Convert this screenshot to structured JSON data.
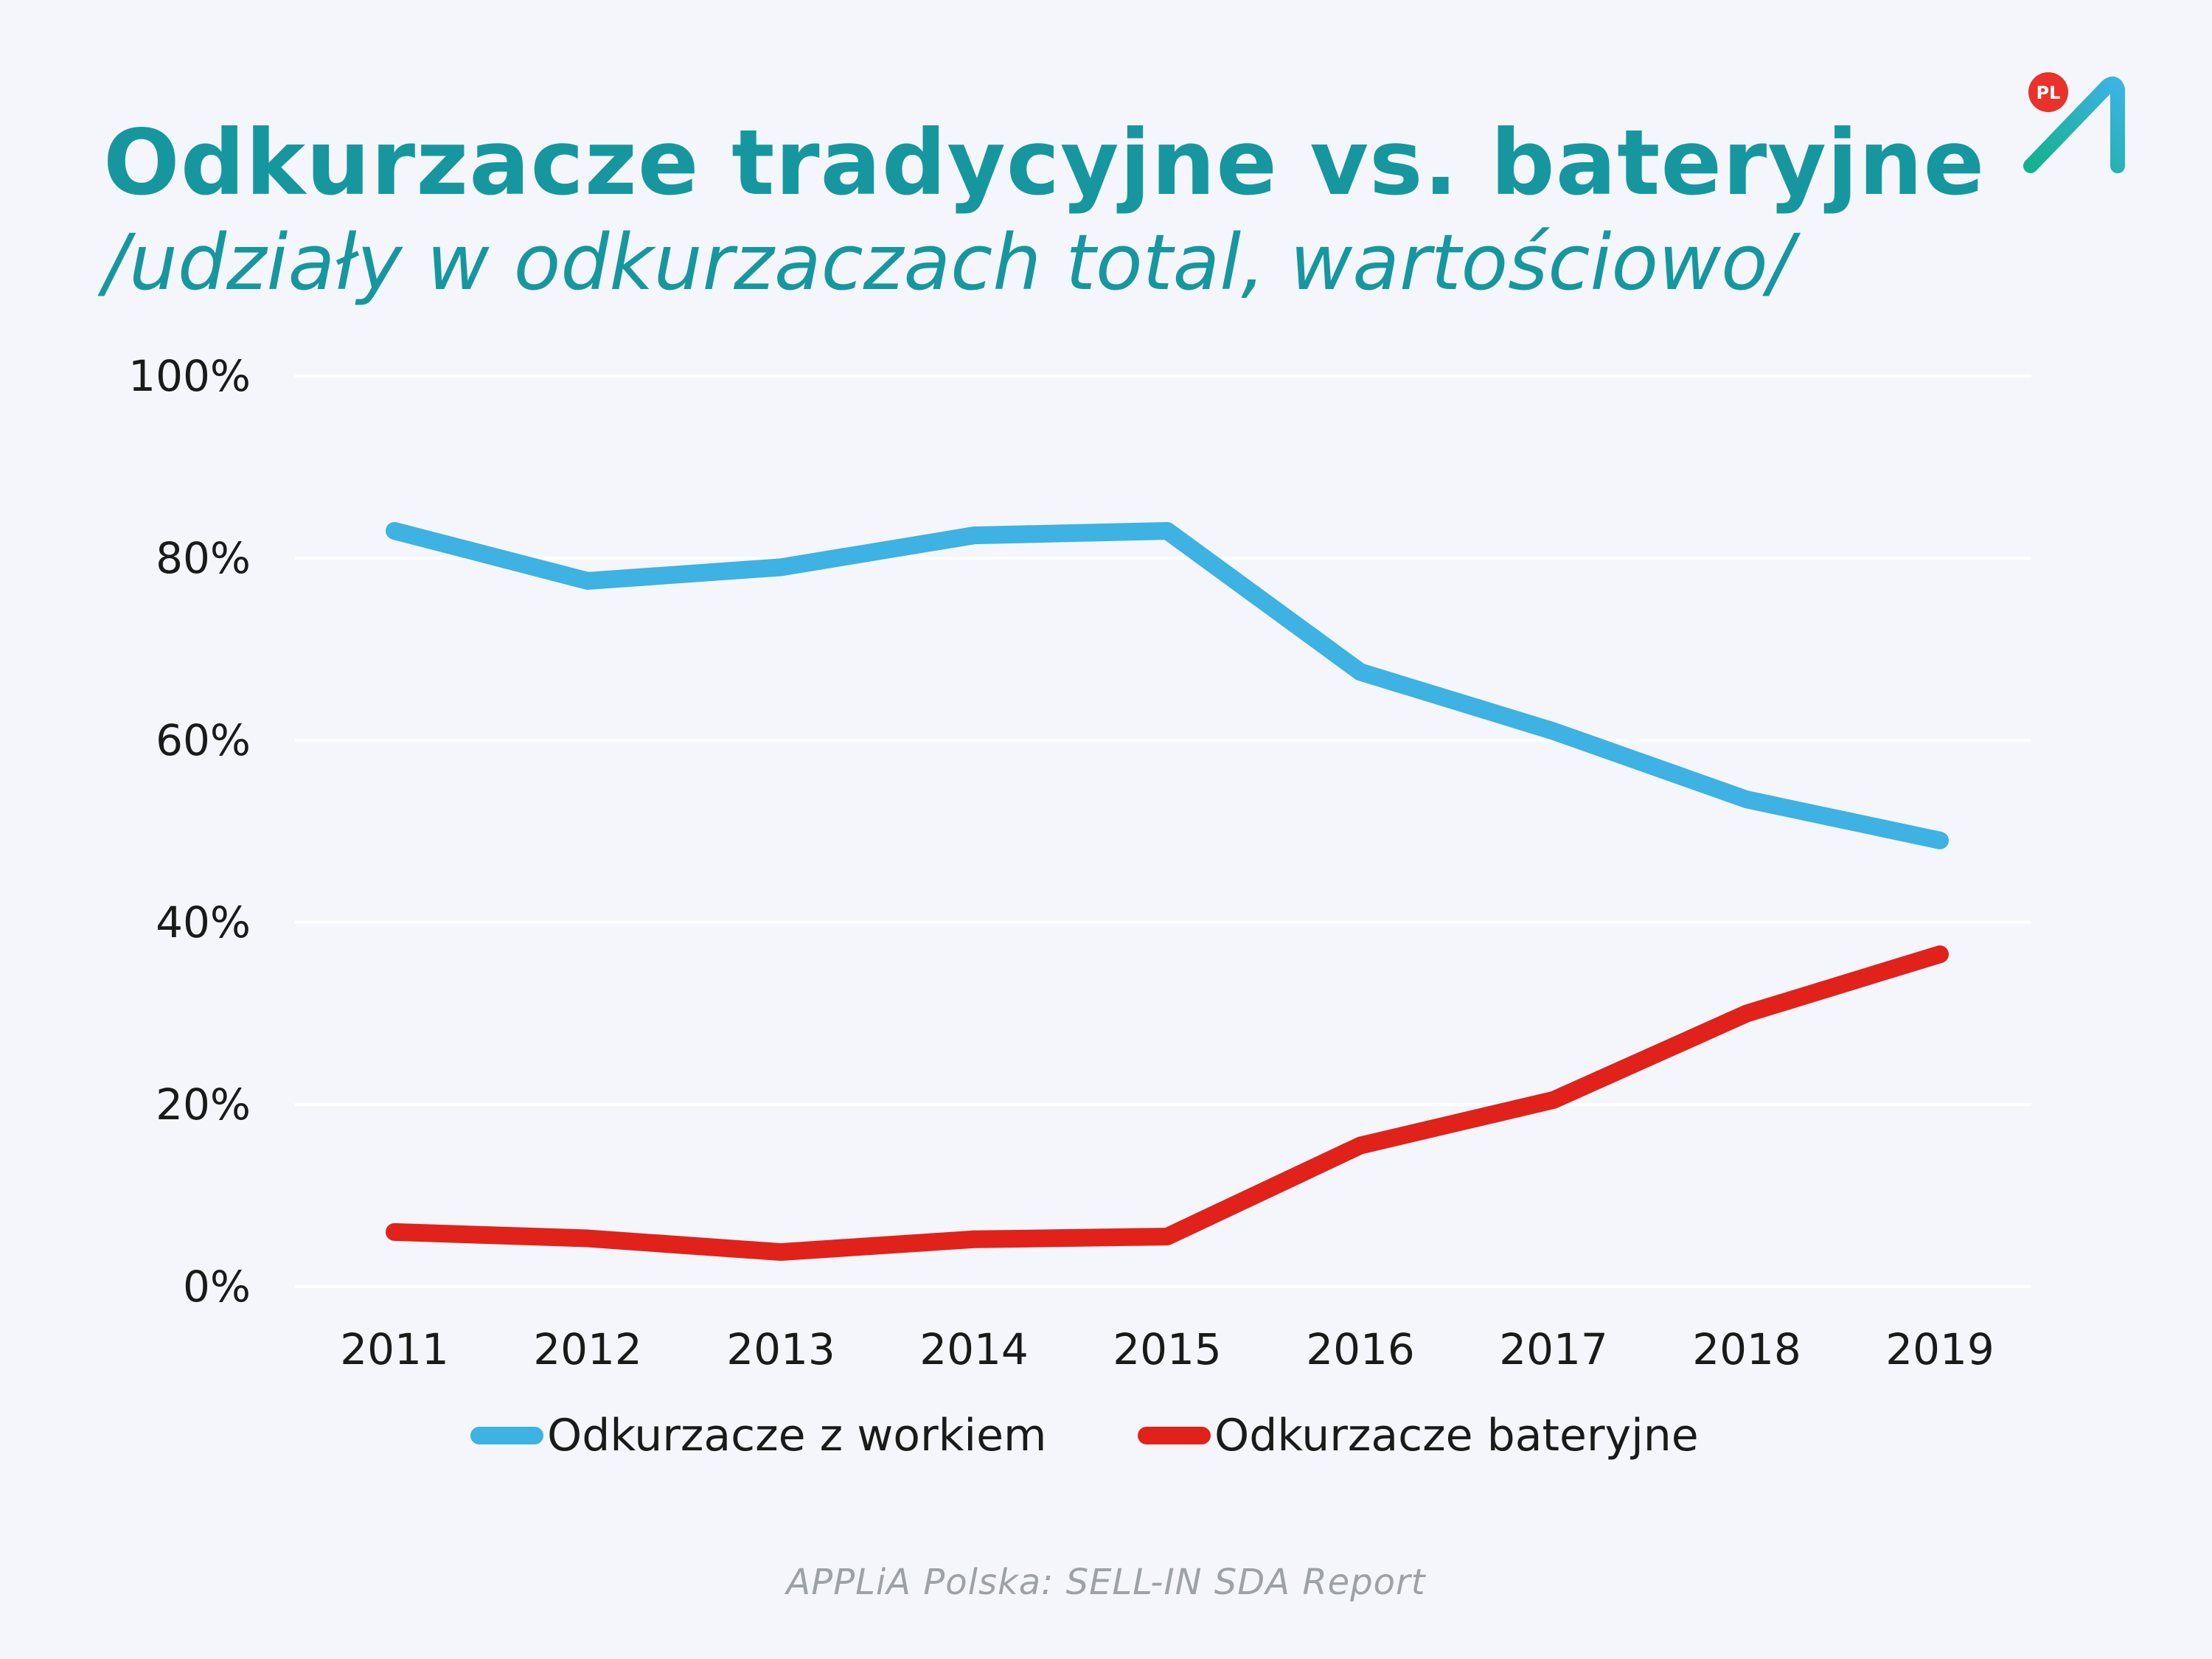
{
  "header": {
    "title": "Odkurzacze tradycyjne vs. bateryjne",
    "subtitle": "/udziały w odkurzaczach total, wartościowo/"
  },
  "logo": {
    "badge": "PL",
    "icon": "applia-logo-icon",
    "badge_color": "#e8322a",
    "mark_color": "#1fb5a0"
  },
  "source": "APPLiA Polska: SELL-IN SDA Report",
  "chart_data": {
    "type": "line",
    "categories": [
      "2011",
      "2012",
      "2013",
      "2014",
      "2015",
      "2016",
      "2017",
      "2018",
      "2019"
    ],
    "series": [
      {
        "name": "Odkurzacze z workiem",
        "color": "#3db2e3",
        "values": [
          83,
          77.5,
          79,
          82.5,
          83,
          67.5,
          61,
          53.5,
          49
        ]
      },
      {
        "name": "Odkurzacze bateryjne",
        "color": "#e0221b",
        "values": [
          6,
          5.3,
          3.8,
          5.2,
          5.5,
          15.5,
          20.5,
          30,
          36.5
        ]
      }
    ],
    "yticks": [
      "0%",
      "20%",
      "40%",
      "60%",
      "80%",
      "100%"
    ],
    "ylim": [
      0,
      100
    ],
    "grid": true,
    "legend": "bottom"
  }
}
